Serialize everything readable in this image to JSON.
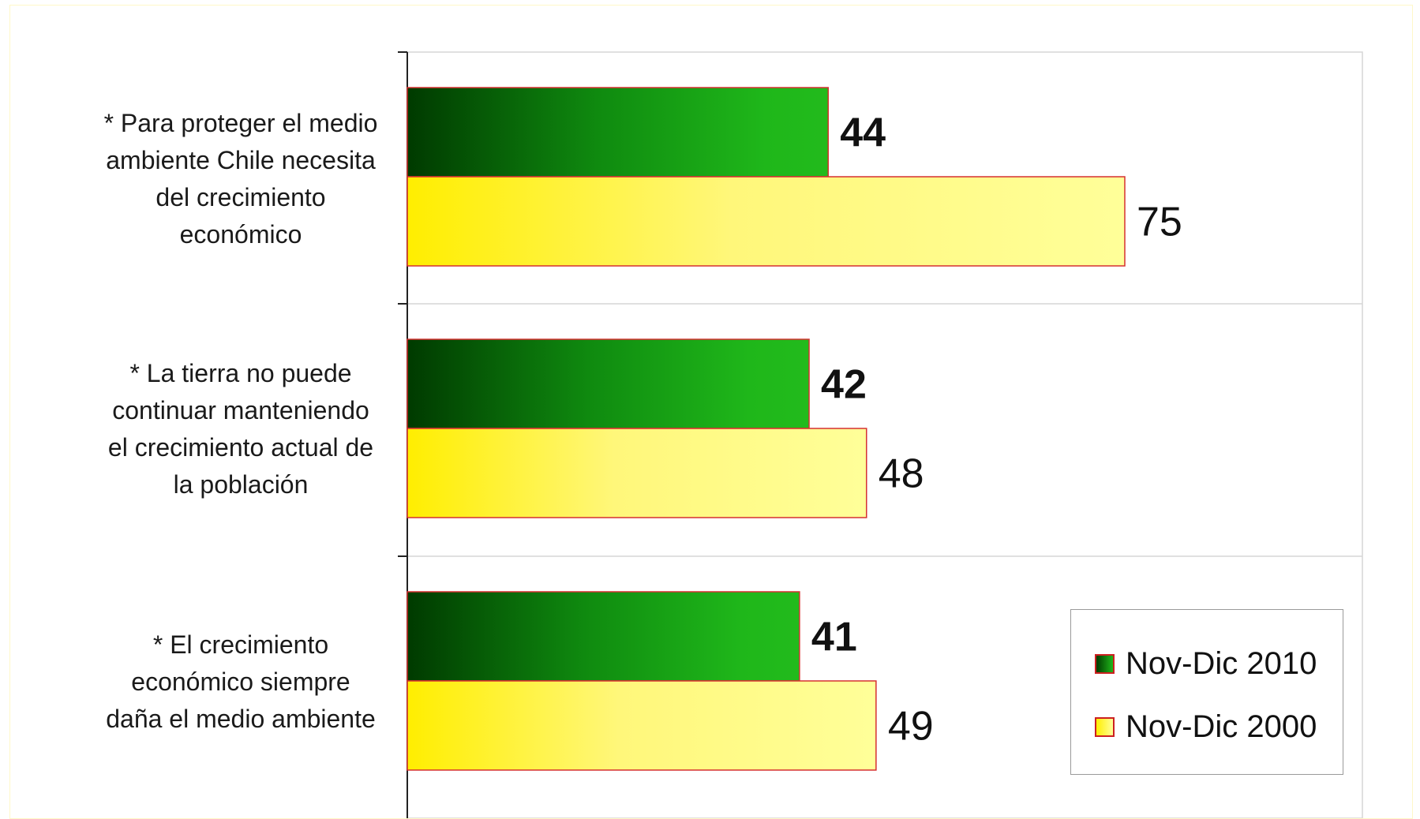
{
  "chart_data": {
    "type": "bar",
    "orientation": "horizontal",
    "categories": [
      "* Para proteger el medio ambiente Chile necesita del crecimiento económico",
      "* La tierra no puede continuar manteniendo el crecimiento actual de la población",
      "* El crecimiento económico siempre daña el medio ambiente"
    ],
    "category_lines": [
      [
        "* Para proteger el medio",
        "ambiente Chile necesita",
        "del crecimiento",
        "económico"
      ],
      [
        "* La tierra no puede",
        "continuar manteniendo",
        "el crecimiento actual de",
        "la población"
      ],
      [
        "* El crecimiento",
        "económico siempre",
        "daña el medio ambiente"
      ]
    ],
    "series": [
      {
        "name": "Nov-Dic 2010",
        "values": [
          44,
          42,
          41
        ],
        "color": "#1fb71a",
        "label_bold": true
      },
      {
        "name": "Nov-Dic 2000",
        "values": [
          75,
          48,
          49
        ],
        "color": "#ffff88",
        "label_bold": false
      }
    ],
    "xlim": [
      0,
      100
    ],
    "grid": true,
    "legend_position": "bottom-right",
    "title": "",
    "xlabel": "",
    "ylabel": ""
  }
}
